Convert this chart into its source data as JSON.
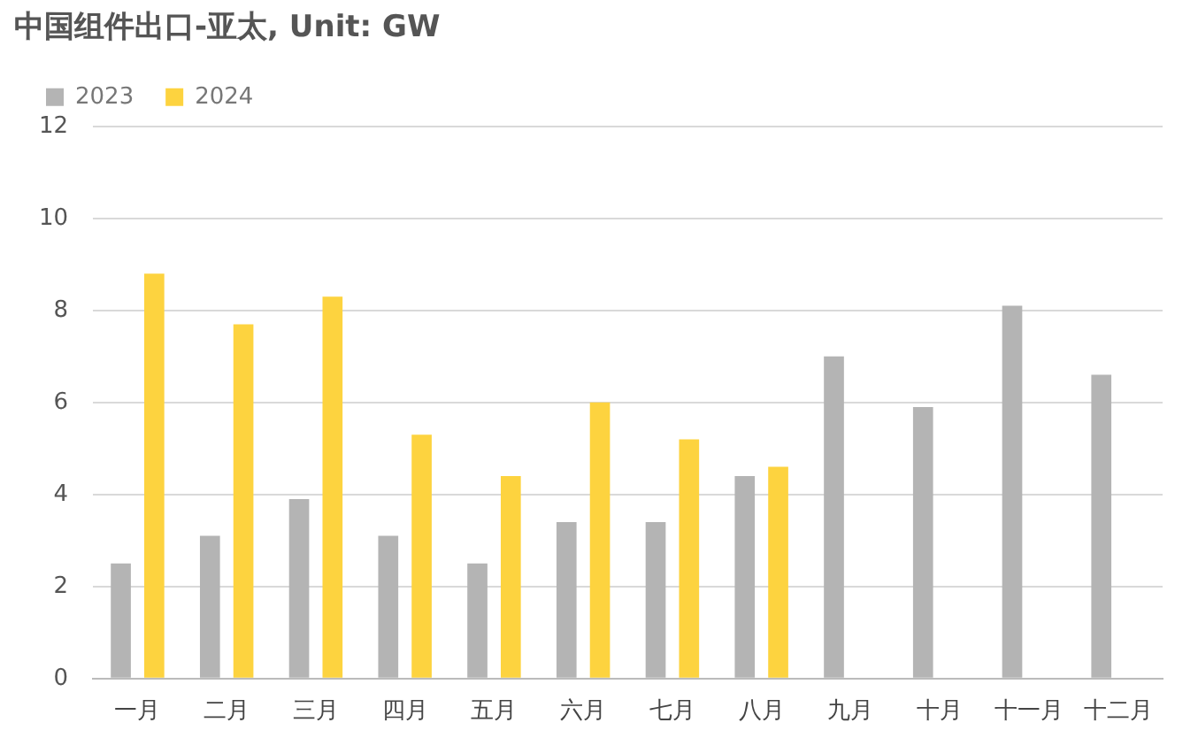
{
  "chart_data": {
    "type": "bar",
    "title": "中国组件出口-亚太, Unit: GW",
    "categories": [
      "一月",
      "二月",
      "三月",
      "四月",
      "五月",
      "六月",
      "七月",
      "八月",
      "九月",
      "十月",
      "十一月",
      "十二月"
    ],
    "series": [
      {
        "name": "2023",
        "color": "#b4b4b4",
        "values": [
          2.5,
          3.1,
          3.9,
          3.1,
          2.5,
          3.4,
          3.4,
          4.4,
          7.0,
          5.9,
          8.1,
          6.6
        ]
      },
      {
        "name": "2024",
        "color": "#fdd33f",
        "values": [
          8.8,
          7.7,
          8.3,
          5.3,
          4.4,
          6.0,
          5.2,
          4.6,
          null,
          null,
          null,
          null
        ]
      }
    ],
    "ylim": [
      0,
      12
    ],
    "yticks": [
      0,
      2,
      4,
      6,
      8,
      10,
      12
    ],
    "grid": "y",
    "legend": "top left"
  }
}
